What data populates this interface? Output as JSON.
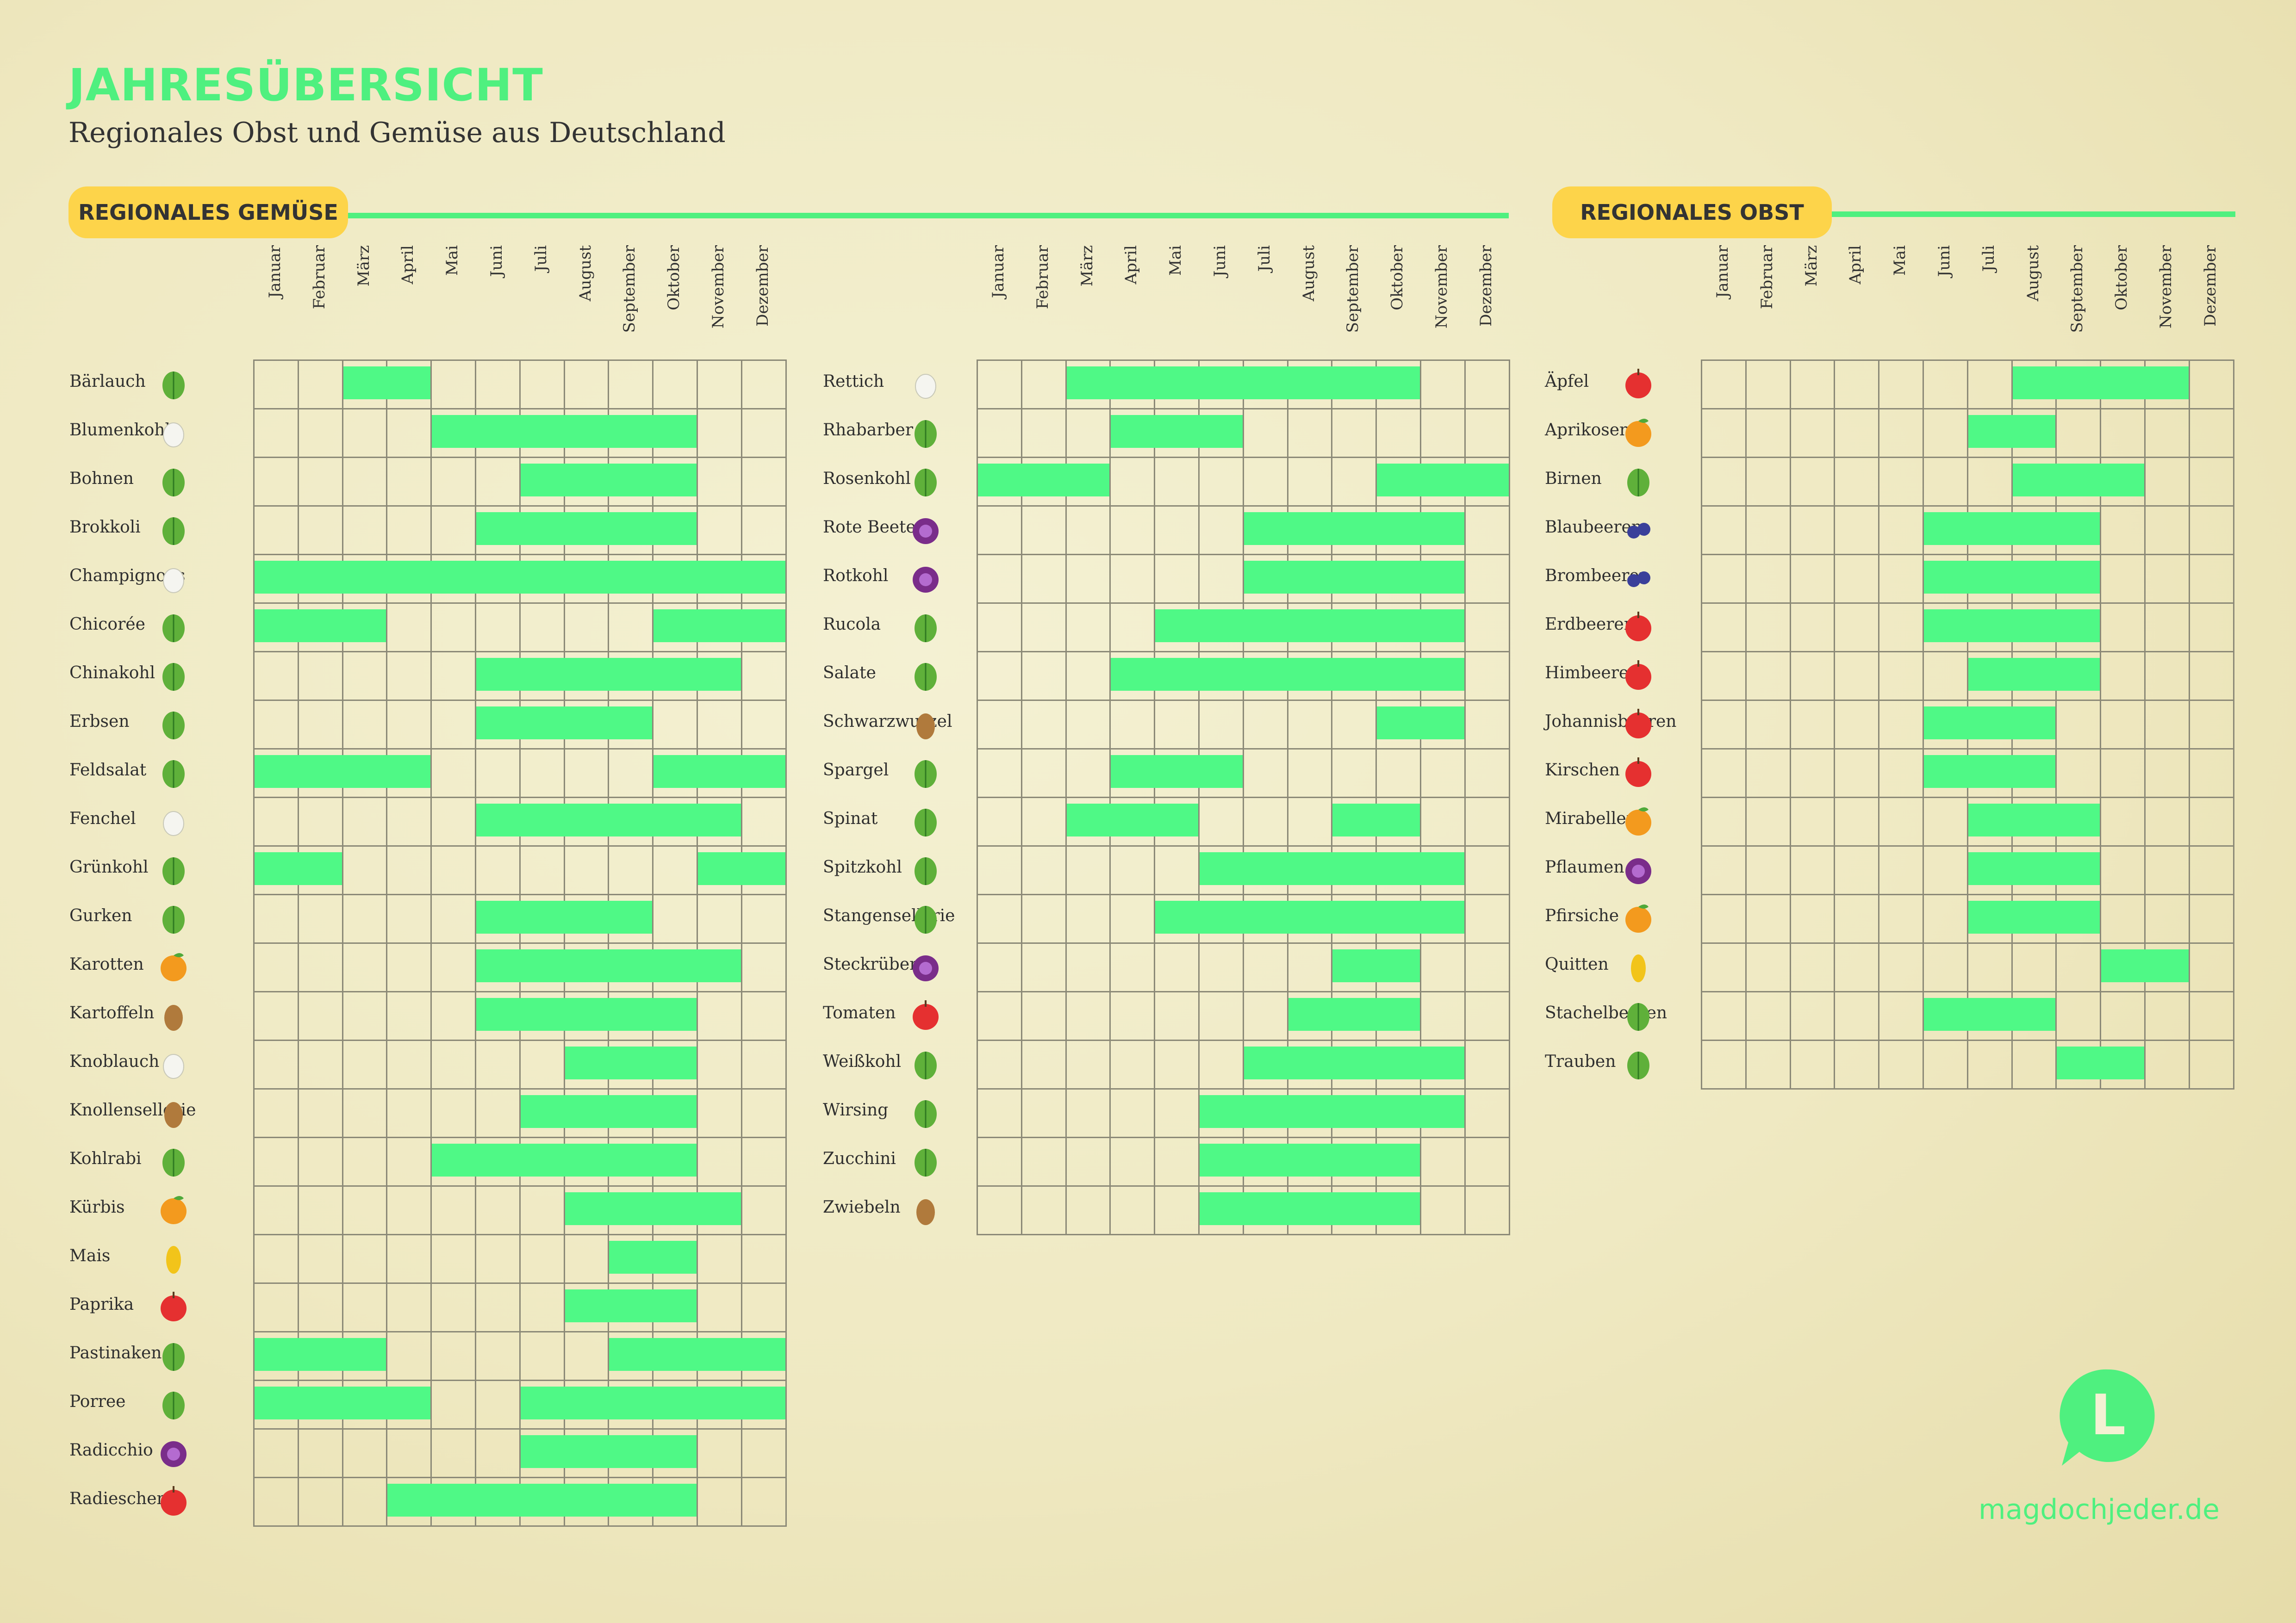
{
  "title": "JAHRESÜBERSICHT",
  "subtitle": "Regionales Obst und Gemüse aus Deutschland",
  "sections": {
    "vegetables": "REGIONALES GEMÜSE",
    "fruit": "REGIONALES OBST"
  },
  "months": [
    "Januar",
    "Februar",
    "März",
    "April",
    "Mai",
    "Juni",
    "Juli",
    "August",
    "September",
    "Oktober",
    "November",
    "Dezember"
  ],
  "colors": {
    "accent": "#4ff07f",
    "season": "#4ff986",
    "badge": "#fdd44a"
  },
  "tables": [
    {
      "id": "vegetables-1",
      "items": [
        {
          "name": "Bärlauch",
          "icon": "wild-garlic-icon",
          "months": [
            3,
            4
          ]
        },
        {
          "name": "Blumenkohl",
          "icon": "cauliflower-icon",
          "months": [
            5,
            6,
            7,
            8,
            9,
            10
          ]
        },
        {
          "name": "Bohnen",
          "icon": "beans-icon",
          "months": [
            7,
            8,
            9,
            10
          ]
        },
        {
          "name": "Brokkoli",
          "icon": "broccoli-icon",
          "months": [
            6,
            7,
            8,
            9,
            10
          ]
        },
        {
          "name": "Champignons",
          "icon": "mushroom-icon",
          "months": [
            1,
            2,
            3,
            4,
            5,
            6,
            7,
            8,
            9,
            10,
            11,
            12
          ]
        },
        {
          "name": "Chicorée",
          "icon": "chicory-icon",
          "months": [
            1,
            2,
            3,
            10,
            11,
            12
          ]
        },
        {
          "name": "Chinakohl",
          "icon": "napa-cabbage-icon",
          "months": [
            6,
            7,
            8,
            9,
            10,
            11
          ]
        },
        {
          "name": "Erbsen",
          "icon": "peas-icon",
          "months": [
            6,
            7,
            8,
            9
          ]
        },
        {
          "name": "Feldsalat",
          "icon": "lambs-lettuce-icon",
          "months": [
            1,
            2,
            3,
            4,
            10,
            11,
            12
          ]
        },
        {
          "name": "Fenchel",
          "icon": "fennel-icon",
          "months": [
            6,
            7,
            8,
            9,
            10,
            11
          ]
        },
        {
          "name": "Grünkohl",
          "icon": "kale-icon",
          "months": [
            1,
            2,
            11,
            12
          ]
        },
        {
          "name": "Gurken",
          "icon": "cucumber-icon",
          "months": [
            6,
            7,
            8,
            9
          ]
        },
        {
          "name": "Karotten",
          "icon": "carrot-icon",
          "months": [
            6,
            7,
            8,
            9,
            10,
            11
          ]
        },
        {
          "name": "Kartoffeln",
          "icon": "potato-icon",
          "months": [
            6,
            7,
            8,
            9,
            10
          ]
        },
        {
          "name": "Knoblauch",
          "icon": "garlic-icon",
          "months": [
            8,
            9,
            10
          ]
        },
        {
          "name": "Knollensellerie",
          "icon": "celeriac-icon",
          "months": [
            7,
            8,
            9,
            10
          ]
        },
        {
          "name": "Kohlrabi",
          "icon": "kohlrabi-icon",
          "months": [
            5,
            6,
            7,
            8,
            9,
            10
          ]
        },
        {
          "name": "Kürbis",
          "icon": "pumpkin-icon",
          "months": [
            8,
            9,
            10,
            11
          ]
        },
        {
          "name": "Mais",
          "icon": "corn-icon",
          "months": [
            9,
            10
          ]
        },
        {
          "name": "Paprika",
          "icon": "bell-pepper-icon",
          "months": [
            8,
            9,
            10
          ]
        },
        {
          "name": "Pastinaken",
          "icon": "parsnip-icon",
          "months": [
            1,
            2,
            3,
            9,
            10,
            11,
            12
          ]
        },
        {
          "name": "Porree",
          "icon": "leek-icon",
          "months": [
            1,
            2,
            3,
            4,
            7,
            8,
            9,
            10,
            11,
            12
          ]
        },
        {
          "name": "Radicchio",
          "icon": "radicchio-icon",
          "months": [
            7,
            8,
            9,
            10
          ]
        },
        {
          "name": "Radieschen",
          "icon": "radish-icon",
          "months": [
            4,
            5,
            6,
            7,
            8,
            9,
            10
          ]
        }
      ]
    },
    {
      "id": "vegetables-2",
      "items": [
        {
          "name": "Rettich",
          "icon": "white-radish-icon",
          "months": [
            3,
            4,
            5,
            6,
            7,
            8,
            9,
            10
          ]
        },
        {
          "name": "Rhabarber",
          "icon": "rhubarb-icon",
          "months": [
            4,
            5,
            6
          ]
        },
        {
          "name": "Rosenkohl",
          "icon": "brussels-sprouts-icon",
          "months": [
            1,
            2,
            3,
            10,
            11,
            12
          ]
        },
        {
          "name": "Rote Beete",
          "icon": "beetroot-icon",
          "months": [
            7,
            8,
            9,
            10,
            11
          ]
        },
        {
          "name": "Rotkohl",
          "icon": "red-cabbage-icon",
          "months": [
            7,
            8,
            9,
            10,
            11
          ]
        },
        {
          "name": "Rucola",
          "icon": "rocket-icon",
          "months": [
            5,
            6,
            7,
            8,
            9,
            10,
            11
          ]
        },
        {
          "name": "Salate",
          "icon": "lettuce-icon",
          "months": [
            4,
            5,
            6,
            7,
            8,
            9,
            10,
            11
          ]
        },
        {
          "name": "Schwarzwurzel",
          "icon": "salsify-icon",
          "months": [
            10,
            11
          ]
        },
        {
          "name": "Spargel",
          "icon": "asparagus-icon",
          "months": [
            4,
            5,
            6
          ]
        },
        {
          "name": "Spinat",
          "icon": "spinach-icon",
          "months": [
            3,
            4,
            5,
            9,
            10
          ]
        },
        {
          "name": "Spitzkohl",
          "icon": "pointed-cabbage-icon",
          "months": [
            6,
            7,
            8,
            9,
            10,
            11
          ]
        },
        {
          "name": "Stangensellerie",
          "icon": "celery-icon",
          "months": [
            5,
            6,
            7,
            8,
            9,
            10,
            11
          ]
        },
        {
          "name": "Steckrüben",
          "icon": "turnip-icon",
          "months": [
            9,
            10
          ]
        },
        {
          "name": "Tomaten",
          "icon": "tomato-icon",
          "months": [
            8,
            9,
            10
          ]
        },
        {
          "name": "Weißkohl",
          "icon": "white-cabbage-icon",
          "months": [
            7,
            8,
            9,
            10,
            11
          ]
        },
        {
          "name": "Wirsing",
          "icon": "savoy-cabbage-icon",
          "months": [
            6,
            7,
            8,
            9,
            10,
            11
          ]
        },
        {
          "name": "Zucchini",
          "icon": "zucchini-icon",
          "months": [
            6,
            7,
            8,
            9,
            10
          ]
        },
        {
          "name": "Zwiebeln",
          "icon": "onion-icon",
          "months": [
            6,
            7,
            8,
            9,
            10
          ]
        }
      ]
    },
    {
      "id": "fruit",
      "items": [
        {
          "name": "Äpfel",
          "icon": "apple-icon",
          "months": [
            8,
            9,
            10,
            11
          ]
        },
        {
          "name": "Aprikosen",
          "icon": "apricot-icon",
          "months": [
            7,
            8
          ]
        },
        {
          "name": "Birnen",
          "icon": "pear-icon",
          "months": [
            8,
            9,
            10
          ]
        },
        {
          "name": "Blaubeeren",
          "icon": "blueberries-icon",
          "months": [
            6,
            7,
            8,
            9
          ]
        },
        {
          "name": "Brombeeren",
          "icon": "blackberries-icon",
          "months": [
            6,
            7,
            8,
            9
          ]
        },
        {
          "name": "Erdbeeren",
          "icon": "strawberries-icon",
          "months": [
            6,
            7,
            8,
            9
          ]
        },
        {
          "name": "Himbeeren",
          "icon": "raspberries-icon",
          "months": [
            7,
            8,
            9
          ]
        },
        {
          "name": "Johannisbeeren",
          "icon": "currants-icon",
          "months": [
            6,
            7,
            8
          ]
        },
        {
          "name": "Kirschen",
          "icon": "cherries-icon",
          "months": [
            6,
            7,
            8
          ]
        },
        {
          "name": "Mirabellen",
          "icon": "mirabelle-icon",
          "months": [
            7,
            8,
            9
          ]
        },
        {
          "name": "Pflaumen",
          "icon": "plum-icon",
          "months": [
            7,
            8,
            9
          ]
        },
        {
          "name": "Pfirsiche",
          "icon": "peach-icon",
          "months": [
            7,
            8,
            9
          ]
        },
        {
          "name": "Quitten",
          "icon": "quince-icon",
          "months": [
            10,
            11
          ]
        },
        {
          "name": "Stachelbeeren",
          "icon": "gooseberries-icon",
          "months": [
            6,
            7,
            8
          ]
        },
        {
          "name": "Trauben",
          "icon": "grapes-icon",
          "months": [
            9,
            10
          ]
        }
      ]
    }
  ],
  "footer": {
    "logo_letter": "L",
    "url": "magdochjeder.de"
  }
}
